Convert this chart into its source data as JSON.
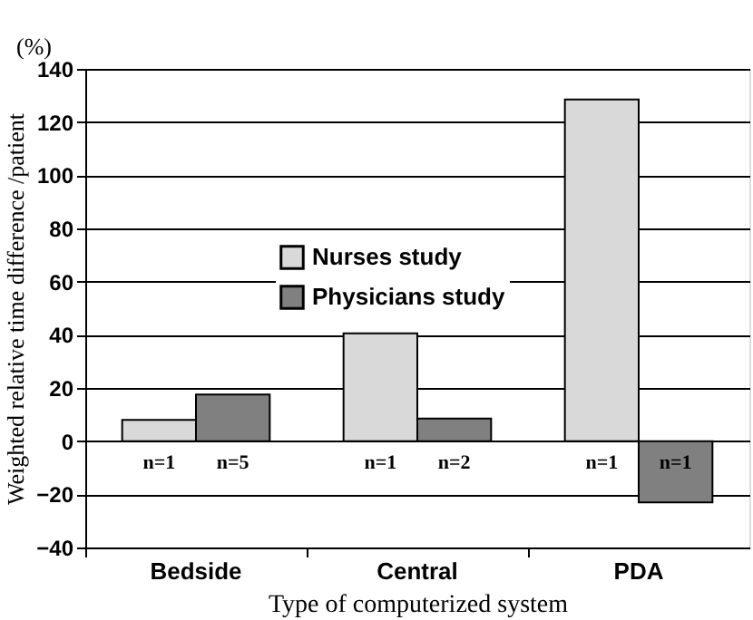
{
  "chart_data": {
    "type": "bar",
    "xlabel": "Type of computerized system",
    "ylabel": "Weighted relative time difference /patient",
    "categories": [
      "Bedside",
      "Central",
      "PDA"
    ],
    "series": [
      {
        "name": "Nurses study",
        "color": "#d9d9d9",
        "values": [
          8,
          40.5,
          128.5
        ]
      },
      {
        "name": "Physicians study",
        "color": "#808080",
        "values": [
          17.5,
          8.5,
          -23
        ]
      }
    ],
    "ylim": [
      -40,
      140
    ],
    "yticks": [
      -40,
      -20,
      0,
      20,
      40,
      60,
      80,
      100,
      120,
      140
    ],
    "grid": "y",
    "legend": "left",
    "annotations": [
      "(%)",
      "n=1",
      "n=5",
      "n=1",
      "n=2",
      "n=1",
      "n=1"
    ]
  }
}
